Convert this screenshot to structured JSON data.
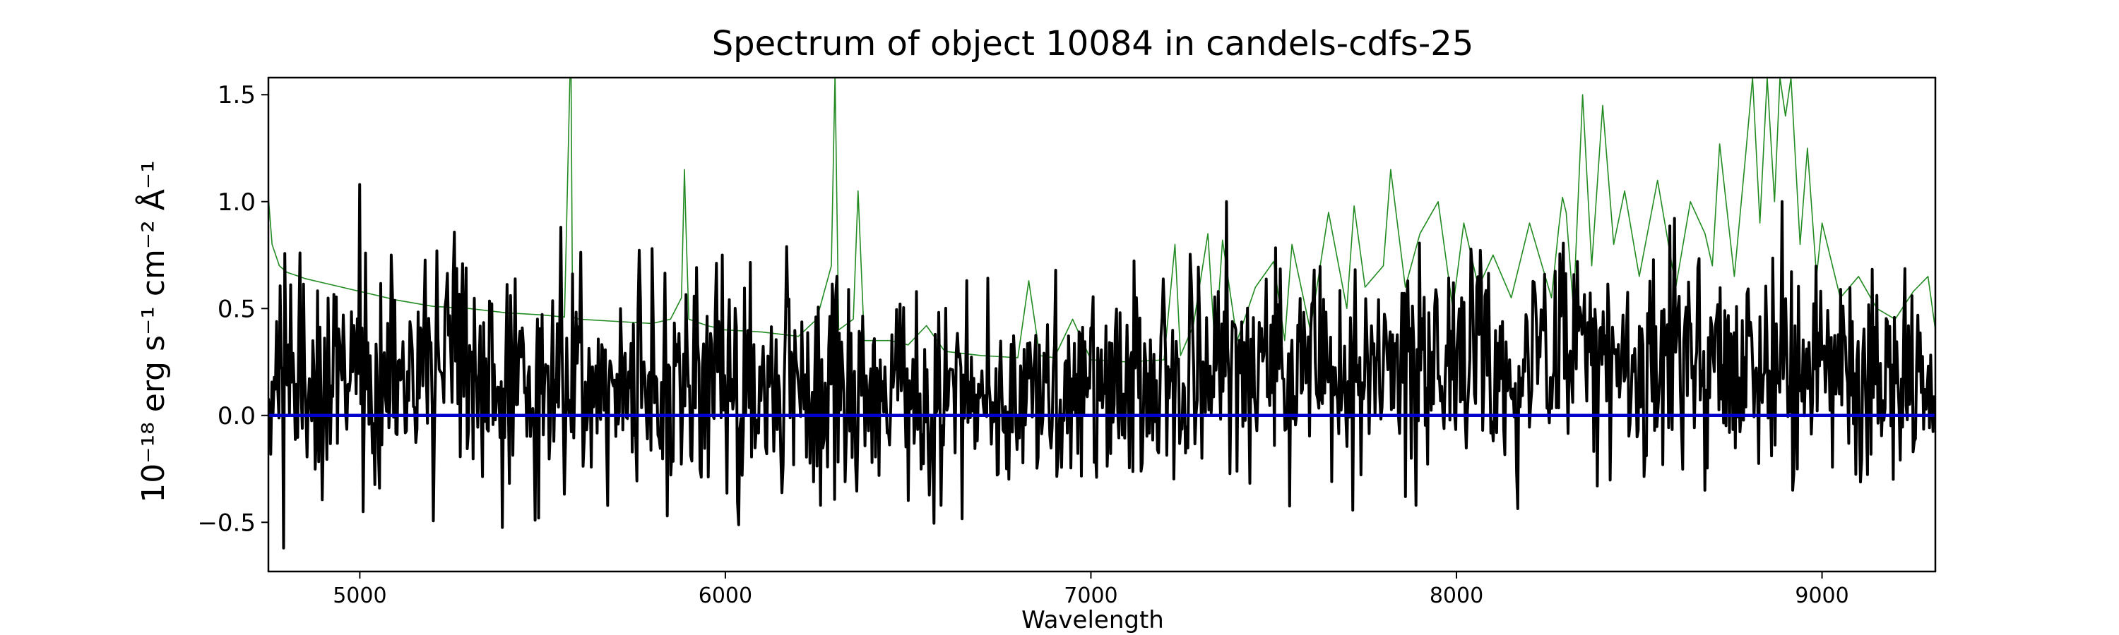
{
  "chart_data": {
    "type": "line",
    "title": "Spectrum of object 10084 in candels-cdfs-25",
    "xlabel": "Wavelength",
    "ylabel": "10⁻¹⁸ erg s⁻¹ cm⁻² Å⁻¹",
    "xlim": [
      4750,
      9310
    ],
    "ylim": [
      -0.73,
      1.58
    ],
    "xticks": [
      5000,
      6000,
      7000,
      8000,
      9000
    ],
    "yticks": [
      -0.5,
      0.0,
      0.5,
      1.0,
      1.5
    ],
    "ytick_labels": [
      "−0.5",
      "0.0",
      "0.5",
      "1.0",
      "1.5"
    ],
    "grid": false,
    "legend": "none",
    "series": [
      {
        "color": "#228b22",
        "description": "noise / error spectrum",
        "x": [
          4750,
          4760,
          4780,
          4800,
          4850,
          4900,
          5000,
          5100,
          5200,
          5300,
          5400,
          5500,
          5560,
          5575,
          5578,
          5582,
          5600,
          5700,
          5800,
          5850,
          5880,
          5888,
          5892,
          5900,
          5950,
          6000,
          6100,
          6200,
          6250,
          6290,
          6300,
          6310,
          6350,
          6363,
          6380,
          6450,
          6500,
          6550,
          6600,
          6700,
          6800,
          6830,
          6860,
          6900,
          6950,
          7000,
          7100,
          7200,
          7230,
          7245,
          7280,
          7320,
          7340,
          7360,
          7400,
          7450,
          7500,
          7530,
          7550,
          7600,
          7650,
          7700,
          7720,
          7750,
          7800,
          7820,
          7860,
          7900,
          7950,
          7990,
          8020,
          8060,
          8100,
          8150,
          8200,
          8260,
          8280,
          8290,
          8300,
          8320,
          8345,
          8370,
          8400,
          8430,
          8460,
          8500,
          8550,
          8600,
          8640,
          8680,
          8700,
          8720,
          8760,
          8790,
          8810,
          8830,
          8850,
          8870,
          8885,
          8900,
          8915,
          8940,
          8960,
          8985,
          9000,
          9050,
          9100,
          9150,
          9200,
          9250,
          9290,
          9310
        ],
        "y": [
          1.02,
          0.8,
          0.7,
          0.67,
          0.64,
          0.62,
          0.58,
          0.54,
          0.51,
          0.5,
          0.48,
          0.47,
          0.46,
          1.6,
          1.6,
          0.46,
          0.45,
          0.44,
          0.43,
          0.45,
          0.55,
          1.15,
          0.9,
          0.45,
          0.42,
          0.4,
          0.39,
          0.37,
          0.45,
          0.7,
          1.6,
          0.4,
          0.45,
          1.05,
          0.35,
          0.35,
          0.33,
          0.42,
          0.3,
          0.28,
          0.27,
          0.63,
          0.28,
          0.27,
          0.45,
          0.26,
          0.25,
          0.26,
          0.8,
          0.28,
          0.42,
          0.85,
          0.3,
          0.82,
          0.35,
          0.6,
          0.72,
          0.35,
          0.8,
          0.4,
          0.95,
          0.5,
          0.98,
          0.6,
          0.7,
          1.15,
          0.6,
          0.85,
          1.0,
          0.5,
          0.9,
          0.6,
          0.75,
          0.55,
          0.9,
          0.55,
          0.88,
          1.02,
          0.95,
          0.5,
          1.5,
          0.7,
          1.45,
          0.8,
          1.05,
          0.65,
          1.1,
          0.6,
          1.0,
          0.85,
          0.7,
          1.27,
          0.65,
          1.2,
          1.58,
          0.9,
          1.58,
          1.0,
          1.58,
          1.4,
          1.58,
          0.8,
          1.25,
          0.65,
          0.9,
          0.55,
          0.65,
          0.5,
          0.45,
          0.58,
          0.65,
          0.4
        ]
      },
      {
        "color": "#000000",
        "description": "observed flux (noisy, generated from envelope)",
        "x": [
          4750,
          4800,
          4900,
          5000,
          5100,
          5200,
          5300,
          5400,
          5500,
          5600,
          5700,
          5800,
          5900,
          6000,
          6100,
          6200,
          6300,
          6400,
          6500,
          6600,
          6700,
          6800,
          6900,
          7000,
          7100,
          7200,
          7300,
          7400,
          7500,
          7600,
          7700,
          7800,
          7900,
          8000,
          8100,
          8200,
          8300,
          8400,
          8500,
          8600,
          8700,
          8800,
          8900,
          9000,
          9100,
          9200,
          9310
        ],
        "y": [
          0.05,
          0.15,
          0.2,
          0.2,
          0.18,
          0.2,
          0.15,
          0.15,
          0.18,
          0.18,
          0.16,
          0.15,
          0.15,
          0.15,
          0.12,
          0.12,
          0.15,
          0.12,
          0.1,
          0.1,
          0.1,
          0.1,
          0.1,
          0.1,
          0.1,
          0.15,
          0.2,
          0.2,
          0.2,
          0.22,
          0.2,
          0.22,
          0.2,
          0.25,
          0.22,
          0.25,
          0.3,
          0.3,
          0.28,
          0.25,
          0.25,
          0.3,
          0.3,
          0.25,
          0.22,
          0.2,
          0.25
        ],
        "noise_amplitude": 0.25,
        "peaks": [
          {
            "x": 4790,
            "y": -0.62
          },
          {
            "x": 4835,
            "y": 0.76
          },
          {
            "x": 5000,
            "y": 1.08
          },
          {
            "x": 5010,
            "y": -0.45
          },
          {
            "x": 5085,
            "y": 0.75
          },
          {
            "x": 5210,
            "y": 0.77
          },
          {
            "x": 5490,
            "y": -0.48
          },
          {
            "x": 5550,
            "y": 0.88
          },
          {
            "x": 5800,
            "y": 0.78
          },
          {
            "x": 5840,
            "y": -0.47
          },
          {
            "x": 5990,
            "y": 0.75
          },
          {
            "x": 6260,
            "y": -0.42
          },
          {
            "x": 6590,
            "y": -0.42
          },
          {
            "x": 7370,
            "y": 1.0
          },
          {
            "x": 7890,
            "y": -0.42
          },
          {
            "x": 8330,
            "y": 0.72
          },
          {
            "x": 8680,
            "y": -0.35
          },
          {
            "x": 8890,
            "y": 1.0
          },
          {
            "x": 8920,
            "y": -0.35
          }
        ]
      },
      {
        "color": "#0000cc",
        "description": "continuum model",
        "x": [
          4750,
          9310
        ],
        "y": [
          0.0,
          0.0
        ]
      }
    ]
  }
}
